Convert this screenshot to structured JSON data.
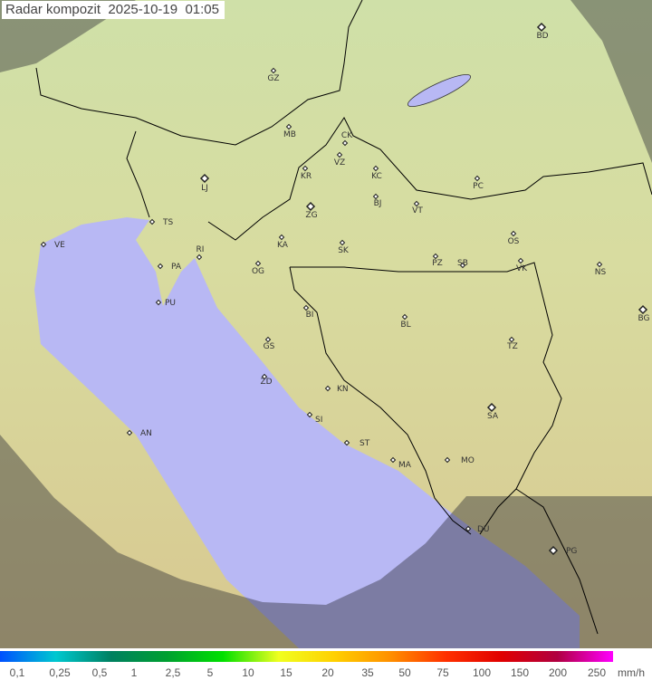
{
  "title": "Radar kompozit  2025-10-19  01:05",
  "colors": {
    "sea_covered": "#b8b8f4",
    "sea_outside": "#8080b8",
    "land": "#d8d8a4",
    "border": "#000000"
  },
  "cities": [
    {
      "code": "GZ",
      "type": "point"
    },
    {
      "code": "MB",
      "type": "point"
    },
    {
      "code": "CK",
      "type": "point"
    },
    {
      "code": "VZ",
      "type": "point"
    },
    {
      "code": "KR",
      "type": "point"
    },
    {
      "code": "KC",
      "type": "point"
    },
    {
      "code": "LJ",
      "type": "capital"
    },
    {
      "code": "ZG",
      "type": "capital"
    },
    {
      "code": "BJ",
      "type": "point"
    },
    {
      "code": "VT",
      "type": "point"
    },
    {
      "code": "PC",
      "type": "point"
    },
    {
      "code": "BD",
      "type": "capital"
    },
    {
      "code": "TS",
      "type": "point"
    },
    {
      "code": "VE",
      "type": "point"
    },
    {
      "code": "KA",
      "type": "point"
    },
    {
      "code": "SK",
      "type": "point"
    },
    {
      "code": "RI",
      "type": "point"
    },
    {
      "code": "PA",
      "type": "point"
    },
    {
      "code": "OG",
      "type": "point"
    },
    {
      "code": "PZ",
      "type": "point"
    },
    {
      "code": "SB",
      "type": "point"
    },
    {
      "code": "OS",
      "type": "point"
    },
    {
      "code": "VK",
      "type": "point"
    },
    {
      "code": "NS",
      "type": "point"
    },
    {
      "code": "PU",
      "type": "point"
    },
    {
      "code": "BG",
      "type": "capital"
    },
    {
      "code": "BI",
      "type": "point"
    },
    {
      "code": "BL",
      "type": "point"
    },
    {
      "code": "GS",
      "type": "point"
    },
    {
      "code": "TZ",
      "type": "point"
    },
    {
      "code": "ZD",
      "type": "point"
    },
    {
      "code": "KN",
      "type": "point"
    },
    {
      "code": "SA",
      "type": "capital"
    },
    {
      "code": "SI",
      "type": "point"
    },
    {
      "code": "AN",
      "type": "point"
    },
    {
      "code": "ST",
      "type": "point"
    },
    {
      "code": "MA",
      "type": "point"
    },
    {
      "code": "MO",
      "type": "point"
    },
    {
      "code": "DU",
      "type": "point"
    },
    {
      "code": "PG",
      "type": "capital"
    }
  ],
  "legend": {
    "labels": [
      "0,1",
      "0,25",
      "0,5",
      "1",
      "2,5",
      "5",
      "10",
      "15",
      "20",
      "35",
      "50",
      "75",
      "100",
      "150",
      "200",
      "250"
    ],
    "unit": "mm/h",
    "gradient": [
      "#0050ff",
      "#00c8d0",
      "#008060",
      "#00a030",
      "#00e000",
      "#f0ff20",
      "#ffd000",
      "#ff9000",
      "#ff3000",
      "#e00000",
      "#b00040",
      "#ff00ff"
    ]
  }
}
